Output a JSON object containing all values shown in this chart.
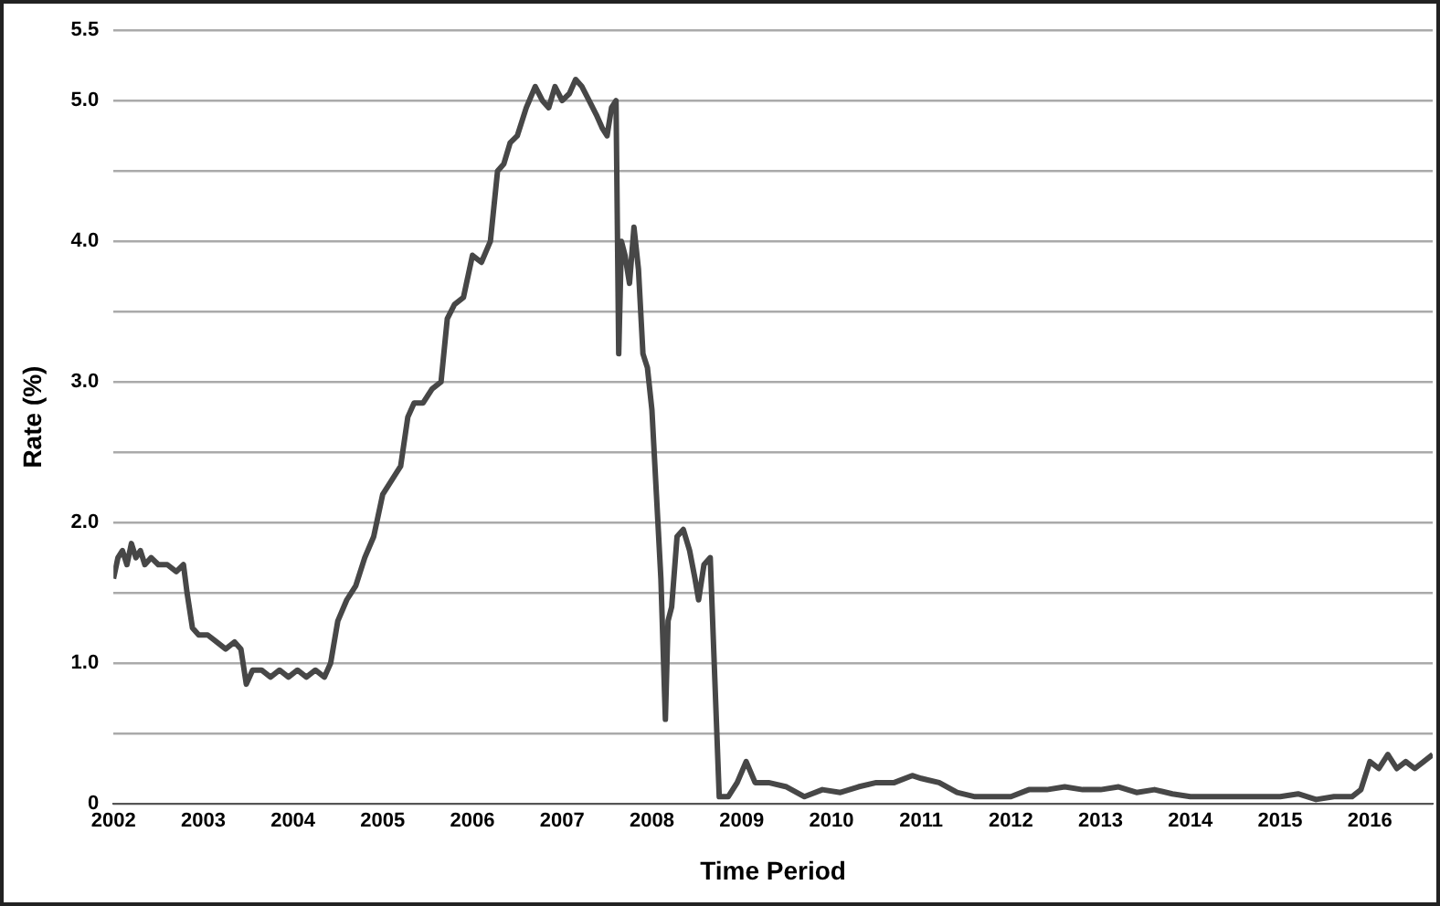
{
  "chart_data": {
    "type": "line",
    "xlabel": "Time Period",
    "ylabel": "Rate (%)",
    "x": [
      2002.0,
      2002.05,
      2002.1,
      2002.15,
      2002.2,
      2002.25,
      2002.3,
      2002.35,
      2002.42,
      2002.5,
      2002.6,
      2002.7,
      2002.78,
      2002.82,
      2002.88,
      2002.95,
      2003.05,
      2003.15,
      2003.25,
      2003.35,
      2003.42,
      2003.48,
      2003.55,
      2003.65,
      2003.75,
      2003.85,
      2003.95,
      2004.05,
      2004.15,
      2004.25,
      2004.35,
      2004.42,
      2004.5,
      2004.6,
      2004.7,
      2004.8,
      2004.9,
      2005.0,
      2005.1,
      2005.2,
      2005.28,
      2005.35,
      2005.45,
      2005.55,
      2005.65,
      2005.72,
      2005.8,
      2005.9,
      2006.0,
      2006.1,
      2006.2,
      2006.28,
      2006.35,
      2006.42,
      2006.5,
      2006.6,
      2006.7,
      2006.78,
      2006.85,
      2006.92,
      2007.0,
      2007.08,
      2007.15,
      2007.22,
      2007.3,
      2007.38,
      2007.45,
      2007.5,
      2007.55,
      2007.6,
      2007.63,
      2007.66,
      2007.7,
      2007.75,
      2007.8,
      2007.85,
      2007.9,
      2007.95,
      2008.0,
      2008.05,
      2008.1,
      2008.15,
      2008.18,
      2008.22,
      2008.28,
      2008.35,
      2008.42,
      2008.48,
      2008.52,
      2008.58,
      2008.65,
      2008.7,
      2008.75,
      2008.8,
      2008.85,
      2008.95,
      2009.05,
      2009.15,
      2009.3,
      2009.5,
      2009.7,
      2009.9,
      2010.1,
      2010.3,
      2010.5,
      2010.7,
      2010.9,
      2011.0,
      2011.2,
      2011.4,
      2011.6,
      2011.8,
      2012.0,
      2012.2,
      2012.4,
      2012.6,
      2012.8,
      2013.0,
      2013.2,
      2013.4,
      2013.6,
      2013.8,
      2014.0,
      2014.2,
      2014.4,
      2014.6,
      2014.8,
      2015.0,
      2015.2,
      2015.4,
      2015.6,
      2015.8,
      2015.9,
      2016.0,
      2016.1,
      2016.2,
      2016.3,
      2016.4,
      2016.5,
      2016.6,
      2016.7
    ],
    "values": [
      1.6,
      1.75,
      1.8,
      1.7,
      1.85,
      1.75,
      1.8,
      1.7,
      1.75,
      1.7,
      1.7,
      1.65,
      1.7,
      1.5,
      1.25,
      1.2,
      1.2,
      1.15,
      1.1,
      1.15,
      1.1,
      0.85,
      0.95,
      0.95,
      0.9,
      0.95,
      0.9,
      0.95,
      0.9,
      0.95,
      0.9,
      1.0,
      1.3,
      1.45,
      1.55,
      1.75,
      1.9,
      2.2,
      2.3,
      2.4,
      2.75,
      2.85,
      2.85,
      2.95,
      3.0,
      3.45,
      3.55,
      3.6,
      3.9,
      3.85,
      4.0,
      4.5,
      4.55,
      4.7,
      4.75,
      4.95,
      5.1,
      5.0,
      4.95,
      5.1,
      5.0,
      5.05,
      5.15,
      5.1,
      5.0,
      4.9,
      4.8,
      4.75,
      4.95,
      5.0,
      3.2,
      4.0,
      3.9,
      3.7,
      4.1,
      3.8,
      3.2,
      3.1,
      2.8,
      2.2,
      1.6,
      0.6,
      1.3,
      1.4,
      1.9,
      1.95,
      1.8,
      1.6,
      1.45,
      1.7,
      1.75,
      0.9,
      0.05,
      0.05,
      0.05,
      0.15,
      0.3,
      0.15,
      0.15,
      0.12,
      0.05,
      0.1,
      0.08,
      0.12,
      0.15,
      0.15,
      0.2,
      0.18,
      0.15,
      0.08,
      0.05,
      0.05,
      0.05,
      0.1,
      0.1,
      0.12,
      0.1,
      0.1,
      0.12,
      0.08,
      0.1,
      0.07,
      0.05,
      0.05,
      0.05,
      0.05,
      0.05,
      0.05,
      0.07,
      0.03,
      0.05,
      0.05,
      0.1,
      0.3,
      0.25,
      0.35,
      0.25,
      0.3,
      0.25,
      0.3,
      0.35
    ],
    "color": "#474747",
    "xlim": [
      2002,
      2016.7
    ],
    "xticks": [
      2002,
      2003,
      2004,
      2005,
      2006,
      2007,
      2008,
      2009,
      2010,
      2011,
      2012,
      2013,
      2014,
      2015,
      2016
    ],
    "ylim": [
      0,
      5.5
    ],
    "yticks": [
      0,
      {
        "value": 0.5,
        "label": null
      },
      {
        "value": 1,
        "label": "1.0"
      },
      {
        "value": 1.5,
        "label": null
      },
      {
        "value": 2,
        "label": "2.0"
      },
      {
        "value": 2.5,
        "label": null
      },
      {
        "value": 3,
        "label": "3.0"
      },
      {
        "value": 3.5,
        "label": null
      },
      {
        "value": 4,
        "label": "4.0"
      },
      {
        "value": 4.5,
        "label": null
      },
      {
        "value": 5,
        "label": "5.0"
      },
      5.5
    ],
    "grid": "y",
    "marker": "none",
    "line_style": "solid",
    "legend": false
  }
}
